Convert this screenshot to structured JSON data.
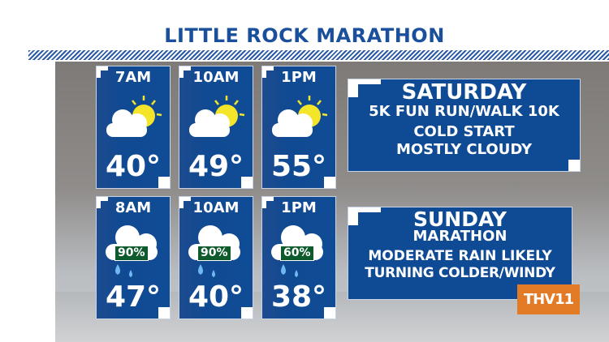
{
  "title": "LITTLE ROCK MARATHON",
  "saturday": {
    "day": "SATURDAY",
    "lines": [
      "5K FUN RUN/WALK 10K",
      "COLD START",
      "MOSTLY CLOUDY"
    ],
    "hours": [
      {
        "time": "7AM",
        "temp": "40°",
        "icon": "partly-cloudy-icon"
      },
      {
        "time": "10AM",
        "temp": "49°",
        "icon": "partly-cloudy-icon"
      },
      {
        "time": "1PM",
        "temp": "55°",
        "icon": "partly-cloudy-icon"
      }
    ]
  },
  "sunday": {
    "day": "SUNDAY",
    "lines": [
      "MARATHON",
      "MODERATE RAIN LIKELY",
      "TURNING COLDER/WINDY"
    ],
    "hours": [
      {
        "time": "8AM",
        "temp": "47°",
        "chance": "90%",
        "icon": "rain-icon"
      },
      {
        "time": "10AM",
        "temp": "40°",
        "chance": "90%",
        "icon": "rain-icon"
      },
      {
        "time": "1PM",
        "temp": "38°",
        "chance": "60%",
        "icon": "rain-icon"
      }
    ]
  },
  "logo": "THV11",
  "colors": {
    "panel": "#0f4b95",
    "title": "#1a4f9c",
    "sun": "#f5e52a",
    "rain_badge": "#0d5a2c",
    "logo": "#e37b26",
    "drop": "#6fb8f0"
  }
}
